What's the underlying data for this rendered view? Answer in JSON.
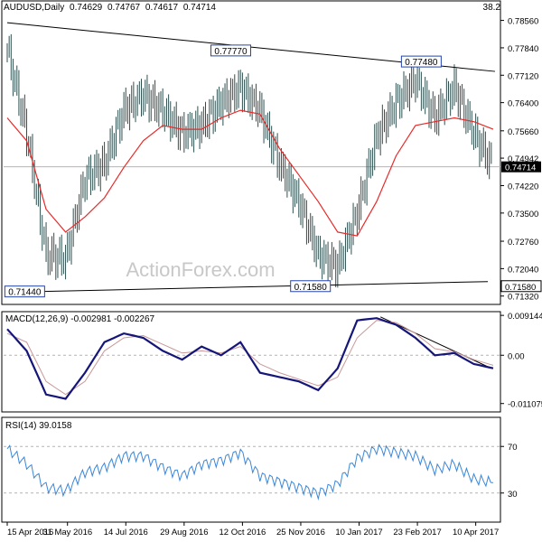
{
  "chart_data": {
    "type": "line",
    "title": "AUDUSD,Daily",
    "ohlc": {
      "open": "0.74629",
      "high": "0.74767",
      "low": "0.74617",
      "close": "0.74714"
    },
    "corner_value": "38.2",
    "watermark": "ActionForex.com",
    "colors": {
      "bars": "#2f4f4f",
      "ma": "#e82a2a",
      "macd": "#15157a",
      "signal": "#c89898",
      "rsi": "#3b87d8",
      "trend": "#000000",
      "grid": "#b4b4b4",
      "price_box": "#000000"
    },
    "x_labels": [
      "15 Apr 2016",
      "31 May 2016",
      "14 Jul 2016",
      "29 Aug 2016",
      "12 Oct 2016",
      "25 Nov 2016",
      "10 Jan 2017",
      "23 Feb 2017",
      "10 Apr 2017"
    ],
    "price_axis": {
      "ylim": [
        0.711,
        0.7874
      ],
      "ticks": [
        "0.78560",
        "0.77840",
        "0.77120",
        "0.76400",
        "0.75660",
        "0.74942",
        "0.74220",
        "0.73500",
        "0.72760",
        "0.72040",
        "0.71320"
      ]
    },
    "current_price": "0.74714",
    "support_label": "0.71580",
    "annotations": [
      "0.77770",
      "0.77480",
      "0.71440",
      "0.71580"
    ],
    "price_series": {
      "x_dates": [
        "15 Apr 2016",
        "1 May 2016",
        "15 May 2016",
        "31 May 2016",
        "14 Jun 2016",
        "30 Jun 2016",
        "14 Jul 2016",
        "1 Aug 2016",
        "15 Aug 2016",
        "29 Aug 2016",
        "14 Sep 2016",
        "30 Sep 2016",
        "12 Oct 2016",
        "1 Nov 2016",
        "15 Nov 2016",
        "25 Nov 2016",
        "12 Dec 2016",
        "27 Dec 2016",
        "10 Jan 2017",
        "25 Jan 2017",
        "7 Feb 2017",
        "23 Feb 2017",
        "10 Mar 2017",
        "25 Mar 2017",
        "10 Apr 2017",
        "19 Apr 2017"
      ],
      "close": [
        0.778,
        0.756,
        0.724,
        0.723,
        0.744,
        0.748,
        0.762,
        0.766,
        0.762,
        0.756,
        0.758,
        0.764,
        0.768,
        0.762,
        0.748,
        0.738,
        0.724,
        0.721,
        0.735,
        0.755,
        0.764,
        0.77,
        0.76,
        0.768,
        0.756,
        0.7471
      ],
      "ma": [
        0.76,
        0.754,
        0.736,
        0.73,
        0.734,
        0.739,
        0.747,
        0.754,
        0.758,
        0.757,
        0.757,
        0.76,
        0.762,
        0.761,
        0.752,
        0.745,
        0.738,
        0.73,
        0.729,
        0.738,
        0.75,
        0.758,
        0.759,
        0.76,
        0.759,
        0.757
      ]
    },
    "macd": {
      "label": "MACD(12,26,9) -0.002981 -0.002267",
      "ticks": [
        "0.009144",
        "0.00",
        "-0.011075"
      ],
      "ylim": [
        -0.013,
        0.01
      ],
      "values": [
        0.006,
        0.001,
        -0.009,
        -0.01,
        -0.004,
        0.003,
        0.005,
        0.004,
        0.001,
        -0.001,
        0.002,
        0.0,
        0.003,
        -0.004,
        -0.005,
        -0.006,
        -0.008,
        -0.003,
        0.008,
        0.0085,
        0.007,
        0.004,
        0.0,
        0.0005,
        -0.002,
        -0.003
      ],
      "signal": [
        0.005,
        0.003,
        -0.006,
        -0.009,
        -0.006,
        0.001,
        0.004,
        0.0045,
        0.0025,
        0.0005,
        0.001,
        0.0005,
        0.002,
        -0.002,
        -0.004,
        -0.0055,
        -0.007,
        -0.005,
        0.004,
        0.008,
        0.0075,
        0.005,
        0.0015,
        0.0008,
        -0.001,
        -0.0023
      ]
    },
    "rsi": {
      "label": "RSI(14) 39.0158",
      "ticks": [
        "70",
        "30"
      ],
      "ylim": [
        5,
        95
      ],
      "values": [
        68,
        55,
        35,
        32,
        48,
        52,
        62,
        62,
        52,
        45,
        55,
        58,
        65,
        45,
        40,
        35,
        30,
        38,
        60,
        68,
        65,
        62,
        50,
        55,
        42,
        39
      ]
    }
  }
}
